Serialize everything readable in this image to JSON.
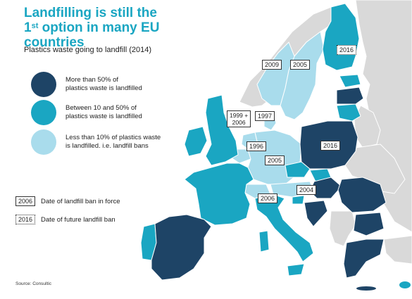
{
  "title": {
    "line1": "Landfilling is still the",
    "line2_num": "1",
    "line2_sup": "st",
    "line2_rest": " option in many EU countries"
  },
  "subtitle": "Plastics waste going to landfill (2014)",
  "colors": {
    "high": "#1e4466",
    "mid": "#1aa6c2",
    "low": "#a9dcec",
    "non_eu": "#d9d9d9",
    "sea": "#ffffff",
    "border": "#ffffff",
    "title": "#1aa6c2"
  },
  "legend": {
    "items": [
      {
        "color": "#1e4466",
        "line1": "More than 50% of",
        "line2": "plastics waste is landfilled"
      },
      {
        "color": "#1aa6c2",
        "line1": "Between 10 and 50% of",
        "line2": "plastics waste is landfilled"
      },
      {
        "color": "#a9dcec",
        "line1": "Less than 10% of plastics waste",
        "line2": "is landfilled. i.e. landfill bans"
      }
    ],
    "ban_in_force": {
      "year": "2006",
      "text": "Date of landfill ban in force"
    },
    "ban_future": {
      "year": "2016",
      "text": "Date of future landfill ban"
    }
  },
  "map_labels": {
    "finland": "2016",
    "sweden": "2005",
    "norway": "2009",
    "netherlands_1": "1999 +",
    "netherlands_2": "2006",
    "denmark": "1997",
    "belgium": "1996",
    "germany": "2005",
    "poland": "2016",
    "austria": "2004",
    "switzerland": "2006"
  },
  "source": "Source: Consultic"
}
